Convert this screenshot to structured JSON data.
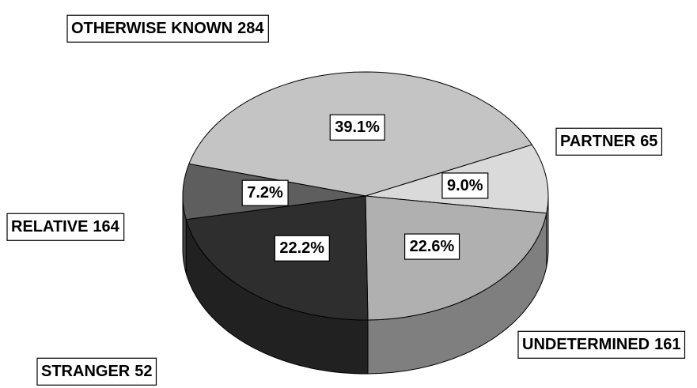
{
  "chart_data": {
    "type": "pie",
    "categories": [
      "OTHERWISE KNOWN",
      "PARTNER",
      "RELATIVE",
      "UNDETERMINED",
      "STRANGER"
    ],
    "counts": [
      284,
      65,
      164,
      161,
      52
    ],
    "values": [
      39.1,
      9.0,
      22.6,
      22.2,
      7.2
    ],
    "value_labels": [
      "39.1%",
      "9.0%",
      "22.6%",
      "22.2%",
      "7.2%"
    ],
    "colors": [
      "#c4c4c4",
      "#dadada",
      "#b0b0b0",
      "#2e2e2e",
      "#5e5e5e"
    ]
  }
}
